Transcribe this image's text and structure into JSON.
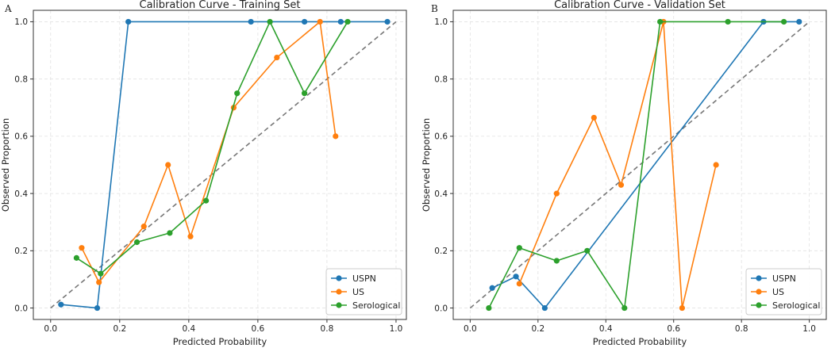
{
  "chart_data": [
    {
      "type": "line",
      "panel_label": "A",
      "title": "Calibration Curve - Training Set",
      "xlabel": "Predicted Probability",
      "ylabel": "Observed Proportion",
      "xlim": [
        -0.05,
        1.03
      ],
      "ylim": [
        -0.04,
        1.04
      ],
      "xticks": [
        0.0,
        0.2,
        0.4,
        0.6,
        0.8,
        1.0
      ],
      "xtick_labels": [
        "0.0",
        "0.2",
        "0.4",
        "0.6",
        "0.8",
        "1.0"
      ],
      "yticks": [
        0.0,
        0.2,
        0.4,
        0.6,
        0.8,
        1.0
      ],
      "ytick_labels": [
        "0.0",
        "0.2",
        "0.4",
        "0.6",
        "0.8",
        "1.0"
      ],
      "grid": true,
      "legend_position": "bottom-right",
      "reference_line": {
        "name": "perfect calibration",
        "style": "dashed",
        "color": "#777777",
        "x": [
          0,
          1
        ],
        "y": [
          0,
          1
        ]
      },
      "series": [
        {
          "name": "USPN",
          "color": "#1f77b4",
          "x": [
            0.03,
            0.135,
            0.225,
            0.58,
            0.735,
            0.84,
            0.975
          ],
          "y": [
            0.012,
            0.0,
            1.0,
            1.0,
            1.0,
            1.0,
            1.0
          ]
        },
        {
          "name": "US",
          "color": "#ff7f0e",
          "x": [
            0.09,
            0.14,
            0.27,
            0.34,
            0.405,
            0.53,
            0.655,
            0.78,
            0.825
          ],
          "y": [
            0.21,
            0.09,
            0.285,
            0.5,
            0.25,
            0.7,
            0.875,
            1.0,
            0.6
          ]
        },
        {
          "name": "Serological",
          "color": "#2ca02c",
          "x": [
            0.075,
            0.145,
            0.25,
            0.345,
            0.45,
            0.54,
            0.635,
            0.735,
            0.86
          ],
          "y": [
            0.175,
            0.12,
            0.23,
            0.262,
            0.375,
            0.75,
            1.0,
            0.75,
            1.0
          ]
        }
      ]
    },
    {
      "type": "line",
      "panel_label": "B",
      "title": "Calibration Curve - Validation Set",
      "xlabel": "Predicted Probability",
      "ylabel": "Observed Proportion",
      "xlim": [
        -0.05,
        1.05
      ],
      "ylim": [
        -0.04,
        1.04
      ],
      "xticks": [
        0.0,
        0.2,
        0.4,
        0.6,
        0.8,
        1.0
      ],
      "xtick_labels": [
        "0.0",
        "0.2",
        "0.4",
        "0.6",
        "0.8",
        "1.0"
      ],
      "yticks": [
        0.0,
        0.2,
        0.4,
        0.6,
        0.8,
        1.0
      ],
      "ytick_labels": [
        "0.0",
        "0.2",
        "0.4",
        "0.6",
        "0.8",
        "1.0"
      ],
      "grid": true,
      "legend_position": "bottom-right",
      "reference_line": {
        "name": "perfect calibration",
        "style": "dashed",
        "color": "#777777",
        "x": [
          0,
          1
        ],
        "y": [
          0,
          1
        ]
      },
      "series": [
        {
          "name": "USPN",
          "color": "#1f77b4",
          "x": [
            0.065,
            0.135,
            0.22,
            0.865,
            0.97
          ],
          "y": [
            0.07,
            0.11,
            0.0,
            1.0,
            1.0
          ]
        },
        {
          "name": "US",
          "color": "#ff7f0e",
          "x": [
            0.145,
            0.255,
            0.365,
            0.445,
            0.57,
            0.625,
            0.725
          ],
          "y": [
            0.085,
            0.4,
            0.665,
            0.43,
            1.0,
            0.0,
            0.5
          ]
        },
        {
          "name": "Serological",
          "color": "#2ca02c",
          "x": [
            0.055,
            0.145,
            0.255,
            0.345,
            0.455,
            0.56,
            0.76,
            0.925
          ],
          "y": [
            0.0,
            0.21,
            0.165,
            0.2,
            0.0,
            1.0,
            1.0,
            1.0
          ]
        }
      ]
    }
  ]
}
